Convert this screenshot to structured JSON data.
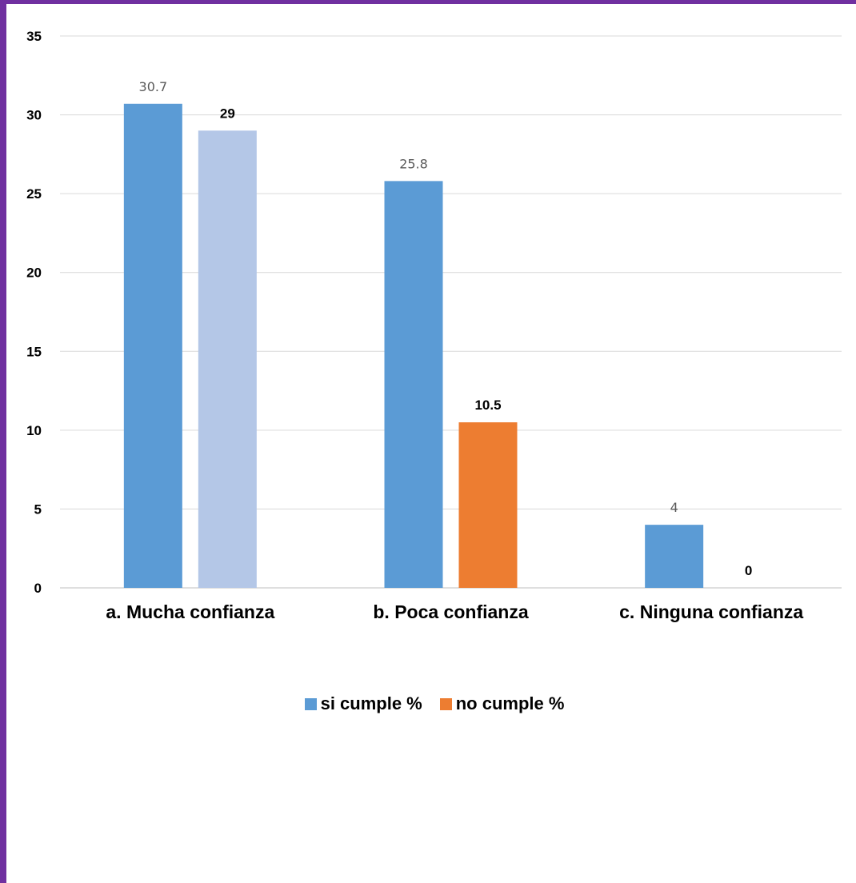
{
  "chart_data": {
    "type": "bar",
    "categories": [
      "a. Mucha confianza",
      "b. Poca confianza",
      "c. Ninguna confianza"
    ],
    "series": [
      {
        "name": "si cumple %",
        "values": [
          30.7,
          25.8,
          4
        ],
        "labels": [
          "30.7",
          "25.8",
          "4"
        ],
        "color": "#5b9bd5",
        "label_color": "#595959",
        "label_bold": false
      },
      {
        "name": "no cumple %",
        "values": [
          29,
          10.5,
          0
        ],
        "labels": [
          "29",
          "10.5",
          "0"
        ],
        "color": "#ed7d31",
        "label_color": "#000000",
        "label_bold": true
      }
    ],
    "bar_colors_override": {
      "1": {
        "0": "#b4c7e7"
      }
    },
    "ylim": [
      0,
      35
    ],
    "yticks": [
      0,
      5,
      10,
      15,
      20,
      25,
      30,
      35
    ],
    "grid": true,
    "legend_position": "bottom",
    "frame_color": "#7030a0"
  }
}
